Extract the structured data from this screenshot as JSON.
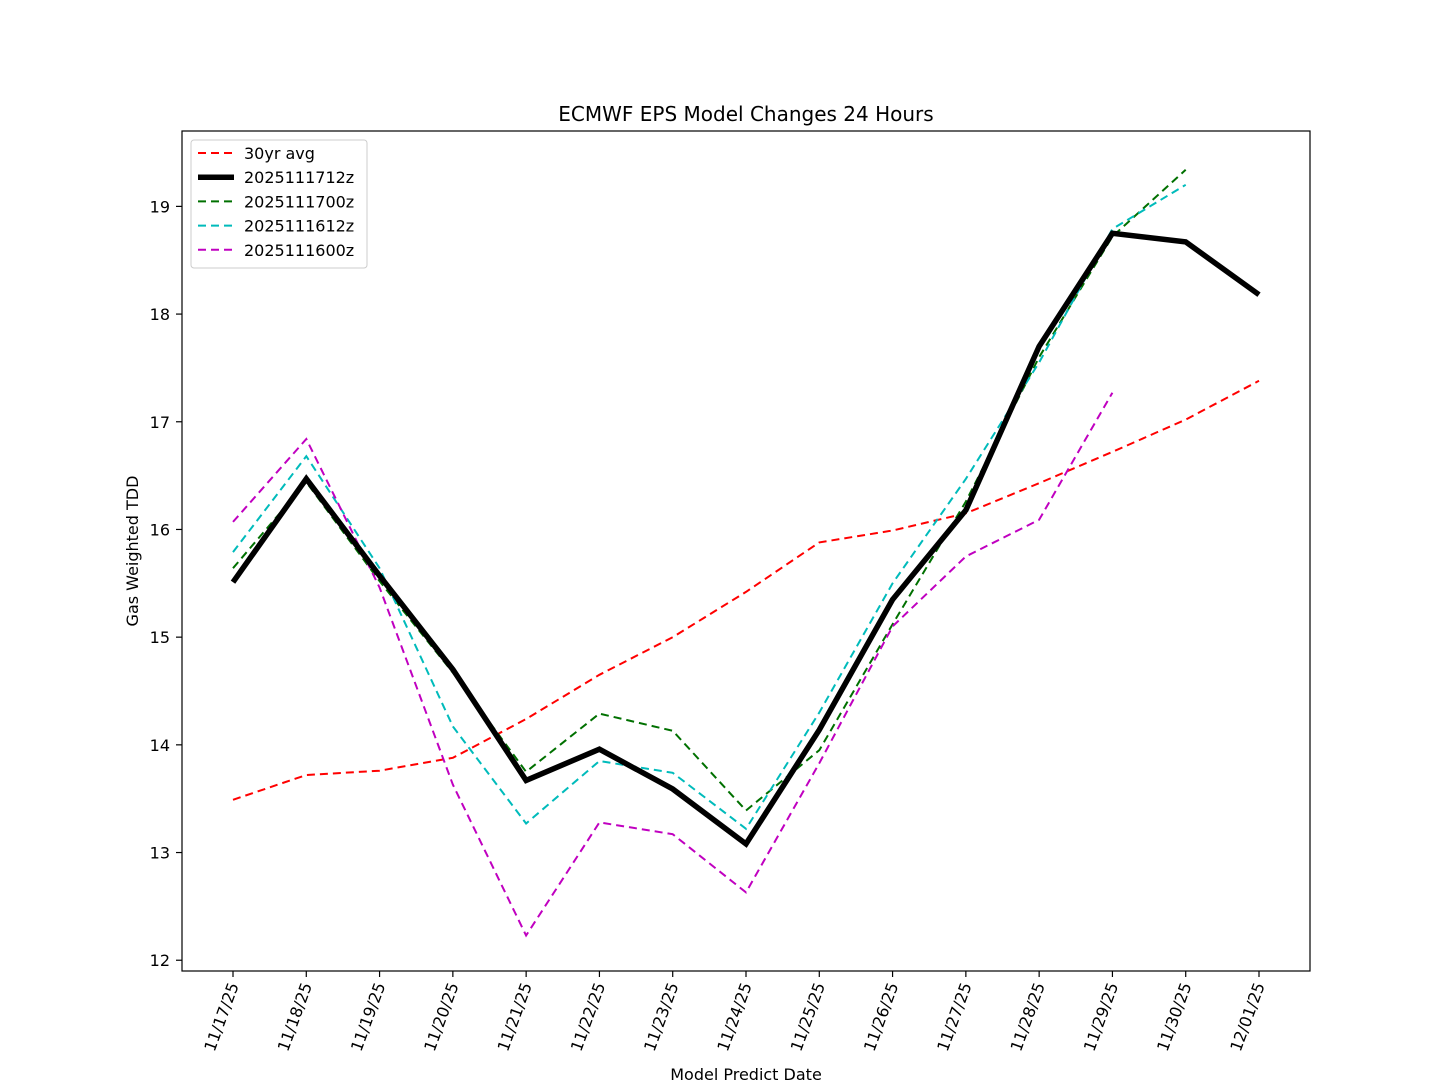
{
  "chart_data": {
    "type": "line",
    "title": "ECMWF EPS Model Changes 24 Hours",
    "xlabel": "Model Predict Date",
    "ylabel": "Gas Weighted TDD",
    "categories": [
      "11/17/25",
      "11/18/25",
      "11/19/25",
      "11/20/25",
      "11/21/25",
      "11/22/25",
      "11/23/25",
      "11/24/25",
      "11/25/25",
      "11/26/25",
      "11/27/25",
      "11/28/25",
      "11/29/25",
      "11/30/25",
      "12/01/25"
    ],
    "ylim": [
      11.9,
      19.7
    ],
    "yticks": [
      12,
      13,
      14,
      15,
      16,
      17,
      18,
      19
    ],
    "grid": false,
    "legend_position": "upper-left",
    "series": [
      {
        "name": "30yr avg",
        "color": "#ff0000",
        "style": "dashed",
        "width": "thin",
        "values": [
          13.49,
          13.72,
          13.76,
          13.88,
          14.24,
          14.65,
          15.0,
          15.42,
          15.88,
          15.99,
          16.15,
          16.43,
          16.72,
          17.02,
          17.38
        ]
      },
      {
        "name": "2025111712z",
        "color": "#000000",
        "style": "solid",
        "width": "thick",
        "values": [
          15.51,
          16.47,
          15.57,
          14.7,
          13.67,
          13.96,
          13.59,
          13.08,
          14.14,
          15.35,
          16.18,
          17.7,
          18.75,
          18.67,
          18.18
        ]
      },
      {
        "name": "2025111700z",
        "color": "#007000",
        "style": "dashed",
        "width": "thin",
        "values": [
          15.64,
          16.44,
          15.52,
          14.67,
          13.75,
          14.29,
          14.13,
          13.39,
          13.95,
          15.12,
          16.26,
          17.6,
          18.72,
          19.34,
          null
        ]
      },
      {
        "name": "2025111612z",
        "color": "#00bbbb",
        "style": "dashed",
        "width": "thin",
        "values": [
          15.79,
          16.68,
          15.64,
          14.17,
          13.27,
          13.85,
          13.74,
          13.22,
          14.3,
          15.5,
          16.47,
          17.55,
          18.79,
          19.2,
          null
        ]
      },
      {
        "name": "2025111600z",
        "color": "#c000c0",
        "style": "dashed",
        "width": "thin",
        "values": [
          16.07,
          16.84,
          15.46,
          13.63,
          12.23,
          13.28,
          13.17,
          12.63,
          13.83,
          15.1,
          15.75,
          16.09,
          17.27,
          null,
          null
        ]
      }
    ]
  }
}
